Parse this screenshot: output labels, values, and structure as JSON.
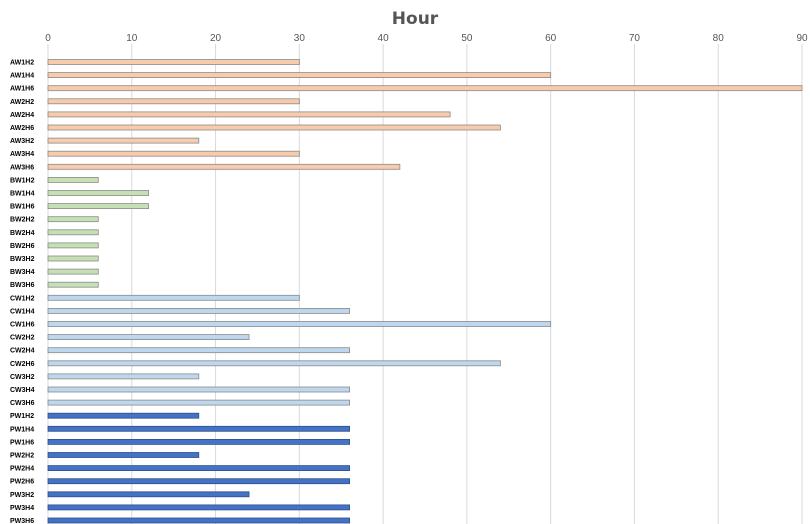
{
  "chart_data": {
    "type": "bar",
    "orientation": "horizontal",
    "title": "Hour",
    "xlabel": "",
    "ylabel": "",
    "xlim": [
      0,
      90
    ],
    "xticks": [
      "0",
      "10",
      "20",
      "30",
      "40",
      "50",
      "60",
      "70",
      "80",
      "90"
    ],
    "x_axis_position": "top",
    "grid": true,
    "categories": [
      "AW1H2",
      "AW1H4",
      "AW1H6",
      "AW2H2",
      "AW2H4",
      "AW2H6",
      "AW3H2",
      "AW3H4",
      "AW3H6",
      "BW1H2",
      "BW1H4",
      "BW1H6",
      "BW2H2",
      "BW2H4",
      "BW2H6",
      "BW3H2",
      "BW3H4",
      "BW3H6",
      "CW1H2",
      "CW1H4",
      "CW1H6",
      "CW2H2",
      "CW2H4",
      "CW2H6",
      "CW3H2",
      "CW3H4",
      "CW3H6",
      "PW1H2",
      "PW1H4",
      "PW1H6",
      "PW2H2",
      "PW2H4",
      "PW2H6",
      "PW3H2",
      "PW3H4",
      "PW3H6"
    ],
    "values": [
      30,
      60,
      90,
      30,
      48,
      54,
      18,
      30,
      42,
      6,
      12,
      12,
      6,
      6,
      6,
      6,
      6,
      6,
      30,
      36,
      60,
      24,
      36,
      54,
      18,
      36,
      36,
      18,
      36,
      36,
      18,
      36,
      36,
      24,
      36,
      36
    ],
    "group_colors": {
      "AW": "#f8cbad",
      "BW": "#c5e0b4",
      "CW": "#bdd7ee",
      "PW": "#4472c4"
    }
  }
}
